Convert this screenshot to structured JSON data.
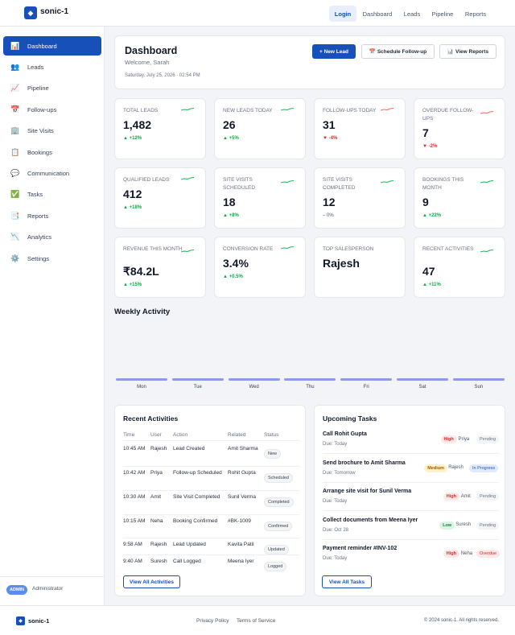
{
  "app": {
    "name": "sonic-1",
    "logo_icon": "diamond-icon"
  },
  "topnav": [
    {
      "label": "Login",
      "active": true
    },
    {
      "label": "Dashboard"
    },
    {
      "label": "Leads"
    },
    {
      "label": "Pipeline"
    },
    {
      "label": "Reports"
    }
  ],
  "sidebar": {
    "items": [
      {
        "label": "Dashboard",
        "icon": "📊",
        "active": true
      },
      {
        "label": "Leads",
        "icon": "👥"
      },
      {
        "label": "Pipeline",
        "icon": "📈"
      },
      {
        "label": "Follow-ups",
        "icon": "📅"
      },
      {
        "label": "Site Visits",
        "icon": "🏢"
      },
      {
        "label": "Bookings",
        "icon": "📋"
      },
      {
        "label": "Communication",
        "icon": "💬"
      },
      {
        "label": "Tasks",
        "icon": "✅"
      },
      {
        "label": "Reports",
        "icon": "📑"
      },
      {
        "label": "Analytics",
        "icon": "📉"
      },
      {
        "label": "Settings",
        "icon": "⚙️"
      }
    ],
    "role_badge": "ADMIN",
    "role_name": "Administrator"
  },
  "header": {
    "title": "Dashboard",
    "welcome": "Welcome, Sarah",
    "datetime": "Saturday, July 25, 2026 · 02:54 PM",
    "buttons": {
      "new_lead": "+ New Lead",
      "schedule_icon": "📅",
      "schedule": "Schedule Follow-up",
      "reports_icon": "📊",
      "reports": "View Reports"
    }
  },
  "stats": [
    {
      "label": "Total Leads",
      "value": "1,482",
      "change": "▲ +12%",
      "trend": "up"
    },
    {
      "label": "New Leads Today",
      "value": "26",
      "change": "▲ +5%",
      "trend": "up"
    },
    {
      "label": "Follow-ups Today",
      "value": "31",
      "change": "▼ -4%",
      "trend": "down"
    },
    {
      "label": "Overdue Follow-ups",
      "value": "7",
      "change": "▼ -2%",
      "trend": "down"
    },
    {
      "label": "Qualified Leads",
      "value": "412",
      "change": "▲ +18%",
      "trend": "up"
    },
    {
      "label": "Site Visits Scheduled",
      "value": "18",
      "change": "▲ +8%",
      "trend": "up"
    },
    {
      "label": "Site Visits Completed",
      "value": "12",
      "change": "– 0%",
      "trend": "neutral"
    },
    {
      "label": "Bookings This Month",
      "value": "9",
      "change": "▲ +22%",
      "trend": "up"
    },
    {
      "label": "Revenue This Month",
      "value": "₹84.2L",
      "change": "▲ +15%",
      "trend": "up"
    },
    {
      "label": "Conversion Rate",
      "value": "3.4%",
      "change": "▲ +0.5%",
      "trend": "up"
    },
    {
      "label": "Top Salesperson",
      "value": "Rajesh",
      "change": "",
      "trend": "none"
    },
    {
      "label": "Recent Activities",
      "value": "47",
      "change": "▲ +11%",
      "trend": "up"
    }
  ],
  "weekly": {
    "title": "Weekly Activity",
    "days": [
      "Mon",
      "Tue",
      "Wed",
      "Thu",
      "Fri",
      "Sat",
      "Sun"
    ]
  },
  "activities": {
    "title": "Recent Activities",
    "columns": [
      "Time",
      "User",
      "Action",
      "Related",
      "Status"
    ],
    "rows": [
      {
        "time": "10:45 AM",
        "user": "Rajesh",
        "action": "Lead Created",
        "related": "Amit Sharma",
        "status": "New"
      },
      {
        "time": "10:42 AM",
        "user": "Priya",
        "action": "Follow-up Scheduled",
        "related": "Rohit Gupta",
        "status": "Scheduled"
      },
      {
        "time": "10:30 AM",
        "user": "Amit",
        "action": "Site Visit Completed",
        "related": "Sunil Verma",
        "status": "Completed"
      },
      {
        "time": "10:15 AM",
        "user": "Neha",
        "action": "Booking Confirmed",
        "related": "#BK-1009",
        "status": "Confirmed"
      },
      {
        "time": "9:58 AM",
        "user": "Rajesh",
        "action": "Lead Updated",
        "related": "Kavita Patil",
        "status": "Updated"
      },
      {
        "time": "9:40 AM",
        "user": "Suresh",
        "action": "Call Logged",
        "related": "Meena Iyer",
        "status": "Logged"
      }
    ],
    "button": "View All Activities"
  },
  "tasks": {
    "title": "Upcoming Tasks",
    "items": [
      {
        "title": "Call Rohit Gupta",
        "due": "Due: Today",
        "priority": "High",
        "assignee": "Priya",
        "status": "Pending"
      },
      {
        "title": "Send brochure to Amit Sharma",
        "due": "Due: Tomorrow",
        "priority": "Medium",
        "assignee": "Rajesh",
        "status": "In Progress"
      },
      {
        "title": "Arrange site visit for Sunil Verma",
        "due": "Due: Today",
        "priority": "High",
        "assignee": "Amit",
        "status": "Pending"
      },
      {
        "title": "Collect documents from Meena Iyer",
        "due": "Due: Oct 28",
        "priority": "Low",
        "assignee": "Suresh",
        "status": "Pending"
      },
      {
        "title": "Payment reminder #INV-102",
        "due": "Due: Today",
        "priority": "High",
        "assignee": "Neha",
        "status": "Overdue"
      }
    ],
    "button": "View All Tasks"
  },
  "footer": {
    "brand": "sonic-1",
    "links": [
      "Privacy Policy",
      "Terms of Service"
    ],
    "copyright": "© 2024 sonic-1. All rights reserved."
  },
  "colors": {
    "primary": "#1650b8",
    "up": "#16a34a",
    "down": "#dc2626",
    "bar": "#8a9be8"
  }
}
